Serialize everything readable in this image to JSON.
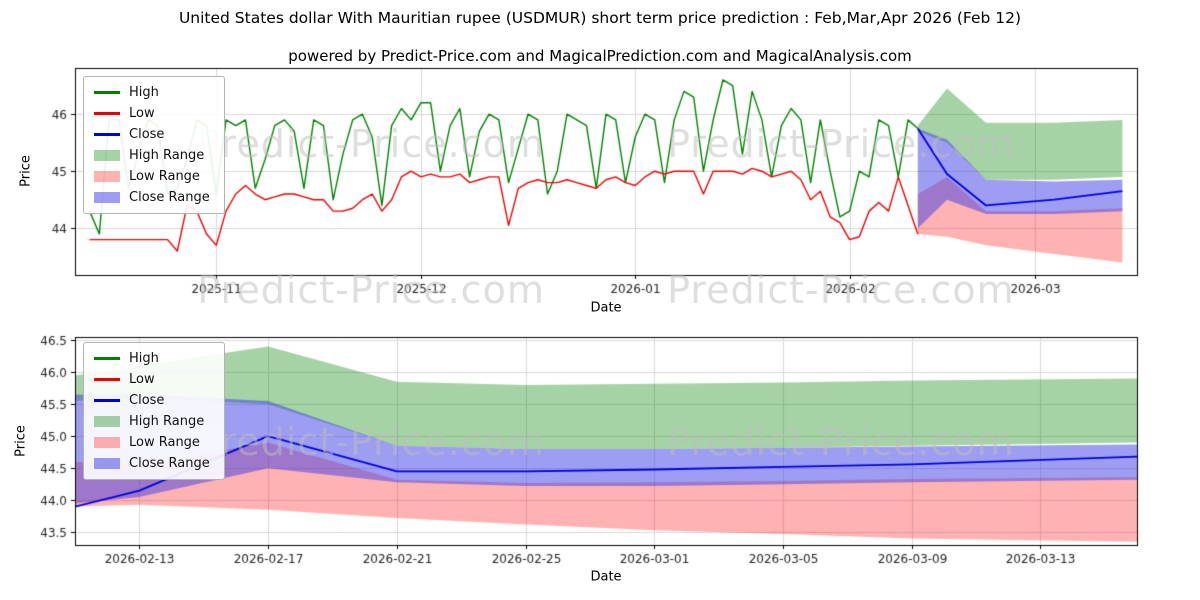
{
  "page": {
    "title": "United States dollar With Mauritian rupee (USDMUR) short term price prediction : Feb,Mar,Apr 2026 (Feb 12)",
    "subtitle": "powered by Predict-Price.com and MagicalPrediction.com and MagicalAnalysis.com",
    "watermark": "Predict-Price.com"
  },
  "legend": {
    "entries": [
      {
        "label": "High",
        "type": "line",
        "color": "#008000"
      },
      {
        "label": "Low",
        "type": "line",
        "color": "#ee0000"
      },
      {
        "label": "Close",
        "type": "line",
        "color": "#0000dd"
      },
      {
        "label": "High Range",
        "type": "patch",
        "color": "rgba(0,128,0,0.35)"
      },
      {
        "label": "Low Range",
        "type": "patch",
        "color": "rgba(255,0,0,0.3)"
      },
      {
        "label": "Close Range",
        "type": "patch",
        "color": "rgba(60,60,230,0.5)"
      }
    ]
  },
  "chart_data": [
    {
      "type": "line",
      "title": "USDMUR daily history with forecast ranges",
      "xlabel": "Date",
      "ylabel": "Price",
      "xlim": [
        -1.5,
        107.5
      ],
      "ylim": [
        43.18,
        46.81
      ],
      "grid": true,
      "legend_position": "upper left",
      "xticks": [
        {
          "x": 13,
          "label": "2025-11"
        },
        {
          "x": 34,
          "label": "2025-12"
        },
        {
          "x": 56,
          "label": "2026-01"
        },
        {
          "x": 78,
          "label": "2026-02"
        },
        {
          "x": 97,
          "label": "2026-03"
        }
      ],
      "yticks": [
        {
          "y": 44,
          "label": "44"
        },
        {
          "y": 45,
          "label": "45"
        },
        {
          "y": 46,
          "label": "46"
        }
      ],
      "series": [
        {
          "name": "High",
          "color": "#008000",
          "width": 1.4,
          "x_start": 0,
          "values": [
            44.3,
            43.9,
            45.9,
            45.9,
            44.7,
            45.3,
            45.9,
            45.8,
            44.6,
            44.7,
            45.2,
            45.9,
            45.8,
            44.6,
            45.9,
            45.8,
            45.9,
            44.7,
            45.2,
            45.8,
            45.9,
            45.7,
            44.7,
            45.9,
            45.8,
            44.5,
            45.3,
            45.9,
            46.0,
            45.6,
            44.4,
            45.8,
            46.1,
            45.9,
            46.2,
            46.2,
            45.0,
            45.8,
            46.1,
            44.9,
            45.7,
            46.0,
            45.9,
            44.8,
            45.4,
            46.0,
            45.9,
            44.6,
            45.0,
            46.0,
            45.9,
            45.8,
            44.7,
            46.0,
            45.9,
            44.8,
            45.6,
            46.0,
            45.9,
            44.8,
            45.9,
            46.4,
            46.3,
            45.0,
            45.9,
            46.6,
            46.5,
            45.3,
            46.4,
            45.9,
            44.9,
            45.8,
            46.1,
            45.9,
            44.8,
            45.9,
            45.0,
            44.2,
            44.3,
            45.0,
            44.9,
            45.9,
            45.8,
            44.9,
            45.9,
            45.75
          ]
        },
        {
          "name": "Low",
          "color": "#ee0000",
          "width": 1.4,
          "x_start": 0,
          "values": [
            43.8,
            43.8,
            43.8,
            43.8,
            43.8,
            43.8,
            43.8,
            43.8,
            43.8,
            43.6,
            44.4,
            44.3,
            43.9,
            43.7,
            44.3,
            44.6,
            44.75,
            44.6,
            44.5,
            44.55,
            44.6,
            44.6,
            44.55,
            44.5,
            44.5,
            44.3,
            44.3,
            44.35,
            44.5,
            44.6,
            44.3,
            44.5,
            44.9,
            45.0,
            44.9,
            44.95,
            44.9,
            44.9,
            44.95,
            44.8,
            44.85,
            44.9,
            44.9,
            44.05,
            44.7,
            44.8,
            44.85,
            44.8,
            44.8,
            44.85,
            44.8,
            44.75,
            44.7,
            44.85,
            44.9,
            44.8,
            44.75,
            44.9,
            45.0,
            44.95,
            45.0,
            45.0,
            45.0,
            44.6,
            45.0,
            45.0,
            45.0,
            44.95,
            45.05,
            45.0,
            44.9,
            44.95,
            45.0,
            44.85,
            44.5,
            44.65,
            44.2,
            44.1,
            43.8,
            43.85,
            44.3,
            44.45,
            44.3,
            44.9,
            44.4,
            43.9
          ]
        },
        {
          "name": "Close",
          "color": "#0000dd",
          "width": 1.8,
          "x": [
            85,
            88,
            92,
            99,
            106
          ],
          "values": [
            45.75,
            44.95,
            44.4,
            44.5,
            44.65
          ]
        }
      ],
      "bands": [
        {
          "name": "High Range",
          "color": "rgba(0,128,0,0.35)",
          "x": [
            85,
            88,
            92,
            99,
            106
          ],
          "top": [
            45.8,
            46.45,
            45.85,
            45.85,
            45.9
          ],
          "bottom": [
            45.7,
            45.5,
            44.85,
            44.85,
            44.9
          ]
        },
        {
          "name": "Low Range",
          "color": "rgba(255,0,0,0.3)",
          "x": [
            85,
            88,
            92,
            99,
            106
          ],
          "top": [
            44.6,
            44.9,
            44.3,
            44.3,
            44.35
          ],
          "bottom": [
            43.9,
            43.85,
            43.7,
            43.55,
            43.4
          ]
        },
        {
          "name": "Close Range",
          "color": "rgba(60,60,230,0.5)",
          "x": [
            85,
            88,
            92,
            99,
            106
          ],
          "top": [
            45.75,
            45.55,
            44.85,
            44.82,
            44.85
          ],
          "bottom": [
            44.0,
            44.5,
            44.25,
            44.25,
            44.3
          ]
        }
      ]
    },
    {
      "type": "line",
      "title": "USDMUR forecast detail Feb-Mar 2026",
      "xlabel": "Date",
      "ylabel": "Price",
      "xlim": [
        -1,
        32
      ],
      "ylim": [
        43.3,
        46.55
      ],
      "grid": true,
      "legend_position": "upper left",
      "xticks": [
        {
          "x": 1,
          "label": "2026-02-13"
        },
        {
          "x": 5,
          "label": "2026-02-17"
        },
        {
          "x": 9,
          "label": "2026-02-21"
        },
        {
          "x": 13,
          "label": "2026-02-25"
        },
        {
          "x": 17,
          "label": "2026-03-01"
        },
        {
          "x": 21,
          "label": "2026-03-05"
        },
        {
          "x": 25,
          "label": "2026-03-09"
        },
        {
          "x": 29,
          "label": "2026-03-13"
        }
      ],
      "yticks": [
        {
          "y": 43.5,
          "label": "43.5"
        },
        {
          "y": 44.0,
          "label": "44.0"
        },
        {
          "y": 44.5,
          "label": "44.5"
        },
        {
          "y": 45.0,
          "label": "45.0"
        },
        {
          "y": 45.5,
          "label": "45.5"
        },
        {
          "y": 46.0,
          "label": "46.0"
        },
        {
          "y": 46.5,
          "label": "46.5"
        }
      ],
      "series": [
        {
          "name": "Close",
          "color": "#0000dd",
          "width": 1.8,
          "x": [
            -1,
            1,
            5,
            9,
            13,
            17,
            21,
            25,
            32
          ],
          "values": [
            43.9,
            44.15,
            45.0,
            44.45,
            44.45,
            44.48,
            44.52,
            44.56,
            44.68
          ]
        }
      ],
      "bands": [
        {
          "name": "High Range",
          "color": "rgba(0,128,0,0.35)",
          "x": [
            -1,
            1,
            5,
            9,
            13,
            17,
            21,
            25,
            32
          ],
          "top": [
            45.95,
            46.1,
            46.4,
            45.85,
            45.8,
            45.82,
            45.84,
            45.87,
            45.9
          ],
          "bottom": [
            45.55,
            45.6,
            45.5,
            44.85,
            44.8,
            44.8,
            44.82,
            44.85,
            44.9
          ]
        },
        {
          "name": "Low Range",
          "color": "rgba(255,0,0,0.3)",
          "x": [
            -1,
            1,
            5,
            9,
            13,
            17,
            21,
            25,
            32
          ],
          "top": [
            44.6,
            44.55,
            44.9,
            44.32,
            44.27,
            44.28,
            44.3,
            44.33,
            44.36
          ],
          "bottom": [
            43.9,
            43.93,
            43.85,
            43.72,
            43.62,
            43.53,
            43.47,
            43.4,
            43.35
          ]
        },
        {
          "name": "Close Range",
          "color": "rgba(60,60,230,0.5)",
          "x": [
            -1,
            1,
            5,
            9,
            13,
            17,
            21,
            25,
            32
          ],
          "top": [
            45.65,
            45.65,
            45.55,
            44.85,
            44.8,
            44.8,
            44.82,
            44.84,
            44.87
          ],
          "bottom": [
            43.95,
            44.05,
            44.5,
            44.28,
            44.22,
            44.22,
            44.25,
            44.28,
            44.32
          ]
        }
      ]
    }
  ]
}
